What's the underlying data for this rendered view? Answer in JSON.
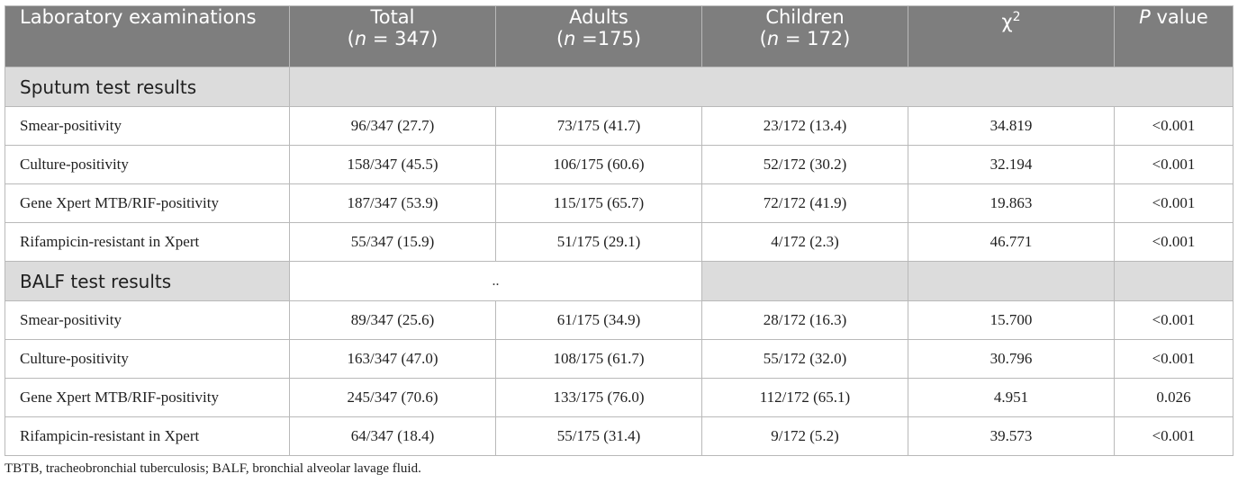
{
  "table": {
    "headers": {
      "col0": "Laboratory examinations",
      "col1": {
        "label": "Total",
        "n_open": "(",
        "n_var": "n",
        "n_rest": " = 347)"
      },
      "col2": {
        "label": "Adults",
        "n_open": "(",
        "n_var": "n",
        "n_rest": " =175)"
      },
      "col3": {
        "label": "Children",
        "n_open": "(",
        "n_var": "n",
        "n_rest": " = 172)"
      },
      "col4": {
        "label": "χ",
        "sup": "2"
      },
      "col5": {
        "p": "P",
        "rest": " value"
      }
    },
    "sections": [
      {
        "title": "Sputum test results",
        "merged_text": "",
        "rows": [
          {
            "label": "Smear-positivity",
            "total": "96/347 (27.7)",
            "adults": "73/175 (41.7)",
            "children": "23/172 (13.4)",
            "chi2": "34.819",
            "p": "<0.001"
          },
          {
            "label": "Culture-positivity",
            "total": "158/347 (45.5)",
            "adults": "106/175 (60.6)",
            "children": "52/172 (30.2)",
            "chi2": "32.194",
            "p": "<0.001"
          },
          {
            "label": "Gene Xpert MTB/RIF-positivity",
            "total": "187/347 (53.9)",
            "adults": "115/175 (65.7)",
            "children": "72/172 (41.9)",
            "chi2": "19.863",
            "p": "<0.001"
          },
          {
            "label": "Rifampicin-resistant in Xpert",
            "total": "55/347 (15.9)",
            "adults": "51/175 (29.1)",
            "children": "4/172 (2.3)",
            "chi2": "46.771",
            "p": "<0.001"
          }
        ]
      },
      {
        "title": "BALF test results",
        "merged_text": "..",
        "rows": [
          {
            "label": "Smear-positivity",
            "total": "89/347 (25.6)",
            "adults": "61/175 (34.9)",
            "children": "28/172 (16.3)",
            "chi2": "15.700",
            "p": "<0.001"
          },
          {
            "label": "Culture-positivity",
            "total": "163/347 (47.0)",
            "adults": "108/175 (61.7)",
            "children": "55/172 (32.0)",
            "chi2": "30.796",
            "p": "<0.001"
          },
          {
            "label": "Gene Xpert MTB/RIF-positivity",
            "total": "245/347 (70.6)",
            "adults": "133/175 (76.0)",
            "children": "112/172 (65.1)",
            "chi2": "4.951",
            "p": "0.026"
          },
          {
            "label": "Rifampicin-resistant in Xpert",
            "total": "64/347 (18.4)",
            "adults": "55/175 (31.4)",
            "children": "9/172 (5.2)",
            "chi2": "39.573",
            "p": "<0.001"
          }
        ]
      }
    ]
  },
  "footnote": "TBTB, tracheobronchial tuberculosis; BALF, bronchial alveolar lavage fluid."
}
